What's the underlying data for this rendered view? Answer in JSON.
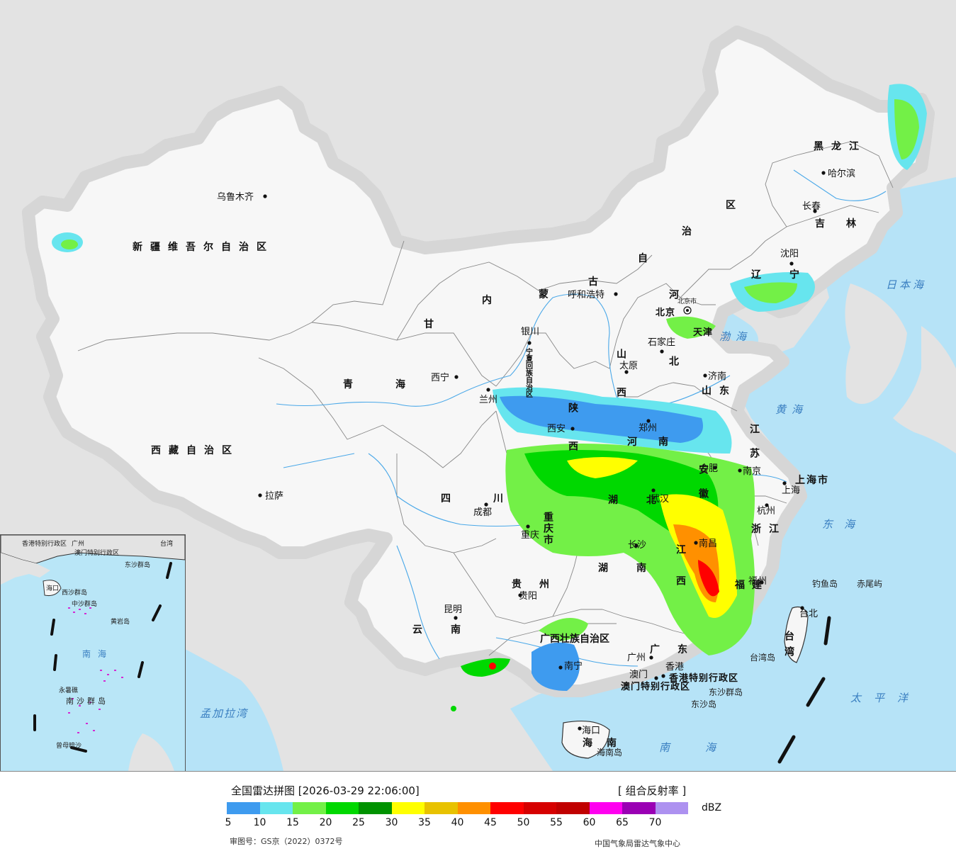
{
  "map": {
    "provinces": [
      {
        "id": "xinjiang",
        "text": "新疆维吾尔自治区"
      },
      {
        "id": "xizang",
        "text": "西藏自治区"
      },
      {
        "id": "qinghai",
        "text": "青海"
      },
      {
        "id": "gansu",
        "text": "甘"
      },
      {
        "id": "neimenggu-1",
        "text": "内"
      },
      {
        "id": "neimenggu-2",
        "text": "蒙"
      },
      {
        "id": "neimenggu-3",
        "text": "古"
      },
      {
        "id": "neimenggu-4",
        "text": "自"
      },
      {
        "id": "neimenggu-5",
        "text": "治"
      },
      {
        "id": "neimenggu-6",
        "text": "区"
      },
      {
        "id": "heilongjiang",
        "text": "黑龙江"
      },
      {
        "id": "jilin",
        "text": "吉林"
      },
      {
        "id": "liaoning",
        "text": "辽宁"
      },
      {
        "id": "hebei",
        "text": "河北"
      },
      {
        "id": "shanxi",
        "text": "山西"
      },
      {
        "id": "shandong",
        "text": "山东"
      },
      {
        "id": "henan",
        "text": "河南"
      },
      {
        "id": "shaanxi",
        "text": "陕西"
      },
      {
        "id": "ningxia",
        "text": "宁夏回族自治区"
      },
      {
        "id": "sichuan",
        "text": "四川"
      },
      {
        "id": "chongqing",
        "text": "重庆市"
      },
      {
        "id": "hubei",
        "text": "湖北"
      },
      {
        "id": "hunan",
        "text": "湖南"
      },
      {
        "id": "anhui",
        "text": "安徽"
      },
      {
        "id": "jiangsu",
        "text": "江苏"
      },
      {
        "id": "zhejiang",
        "text": "浙江"
      },
      {
        "id": "jiangxi",
        "text": "江西"
      },
      {
        "id": "fujian",
        "text": "福建"
      },
      {
        "id": "guizhou",
        "text": "贵州"
      },
      {
        "id": "yunnan",
        "text": "云南"
      },
      {
        "id": "guangxi",
        "text": "广西壮族自治区"
      },
      {
        "id": "guangdong",
        "text": "广东"
      },
      {
        "id": "hainan",
        "text": "海南"
      },
      {
        "id": "taiwan",
        "text": "台湾"
      },
      {
        "id": "shanghai",
        "text": "上海市"
      },
      {
        "id": "xianggang",
        "text": "香港特别行政区"
      },
      {
        "id": "aomen",
        "text": "澳门特别行政区"
      },
      {
        "id": "tianjin",
        "text": "天津"
      },
      {
        "id": "beijing",
        "text": "北京"
      }
    ],
    "cities": [
      {
        "id": "urumqi",
        "text": "乌鲁木齐"
      },
      {
        "id": "lhasa",
        "text": "拉萨"
      },
      {
        "id": "xining",
        "text": "西宁"
      },
      {
        "id": "lanzhou",
        "text": "兰州"
      },
      {
        "id": "yinchuan",
        "text": "银川"
      },
      {
        "id": "hohhot",
        "text": "呼和浩特"
      },
      {
        "id": "harbin",
        "text": "哈尔滨"
      },
      {
        "id": "changchun",
        "text": "长春"
      },
      {
        "id": "shenyang",
        "text": "沈阳"
      },
      {
        "id": "shijiazhuang",
        "text": "石家庄"
      },
      {
        "id": "taiyuan",
        "text": "太原"
      },
      {
        "id": "jinan",
        "text": "济南"
      },
      {
        "id": "zhengzhou",
        "text": "郑州"
      },
      {
        "id": "xian",
        "text": "西安"
      },
      {
        "id": "chengdu",
        "text": "成都"
      },
      {
        "id": "chongqing",
        "text": "重庆"
      },
      {
        "id": "wuhan",
        "text": "武汉"
      },
      {
        "id": "changsha",
        "text": "长沙"
      },
      {
        "id": "hefei",
        "text": "合肥"
      },
      {
        "id": "nanjing",
        "text": "南京"
      },
      {
        "id": "shanghai",
        "text": "上海"
      },
      {
        "id": "hangzhou",
        "text": "杭州"
      },
      {
        "id": "nanchang",
        "text": "南昌"
      },
      {
        "id": "fuzhou",
        "text": "福州"
      },
      {
        "id": "guiyang",
        "text": "贵阳"
      },
      {
        "id": "kunming",
        "text": "昆明"
      },
      {
        "id": "nanning",
        "text": "南宁"
      },
      {
        "id": "guangzhou",
        "text": "广州"
      },
      {
        "id": "xianggang-c",
        "text": "香港"
      },
      {
        "id": "aomen-c",
        "text": "澳门"
      },
      {
        "id": "haikou",
        "text": "海口"
      },
      {
        "id": "taibei",
        "text": "台北"
      }
    ],
    "seas": [
      {
        "id": "bohai",
        "text": "渤海"
      },
      {
        "id": "huanghai",
        "text": "黄海"
      },
      {
        "id": "donghai",
        "text": "东海"
      },
      {
        "id": "nanhai",
        "text": "南海"
      },
      {
        "id": "ribenhai",
        "text": "日本海"
      },
      {
        "id": "taipingyang",
        "text": "太平洋"
      },
      {
        "id": "mengjialawan",
        "text": "孟加拉湾"
      }
    ],
    "islands": [
      {
        "id": "diaoyudao",
        "text": "钓鱼岛"
      },
      {
        "id": "chiweiyu",
        "text": "赤尾屿"
      },
      {
        "id": "dongshaqundao",
        "text": "东沙群岛"
      },
      {
        "id": "dongshadao",
        "text": "东沙岛"
      },
      {
        "id": "hainandao",
        "text": "海南岛"
      },
      {
        "id": "taiwandao",
        "text": "台湾岛"
      },
      {
        "id": "beijing-city",
        "text": "北京市"
      }
    ],
    "inset": {
      "labels": [
        "香港特别行政区",
        "澳门特别行政区",
        "东沙群岛",
        "海口",
        "西沙群岛",
        "中沙群岛",
        "黄岩岛",
        "南海",
        "永暑礁",
        "南沙群岛",
        "曾母暗沙",
        "台湾",
        "广州"
      ]
    }
  },
  "legend": {
    "title": "全国雷达拼图 [2026-03-29 22:06:00]",
    "product": "[ 组合反射率 ]",
    "unit": "dBZ",
    "review_number": "审图号：GS京（2022）0372号",
    "source": "中国气象局雷达气象中心",
    "ticks": [
      "5",
      "10",
      "15",
      "20",
      "25",
      "30",
      "35",
      "40",
      "45",
      "50",
      "55",
      "60",
      "65",
      "70"
    ],
    "colors": [
      "#3e9bef",
      "#67e5ee",
      "#73f047",
      "#00d800",
      "#009200",
      "#ffff00",
      "#e8c200",
      "#ff9000",
      "#ff0000",
      "#d60000",
      "#c00000",
      "#ff00f0",
      "#9a00b4",
      "#ad91f0"
    ]
  }
}
